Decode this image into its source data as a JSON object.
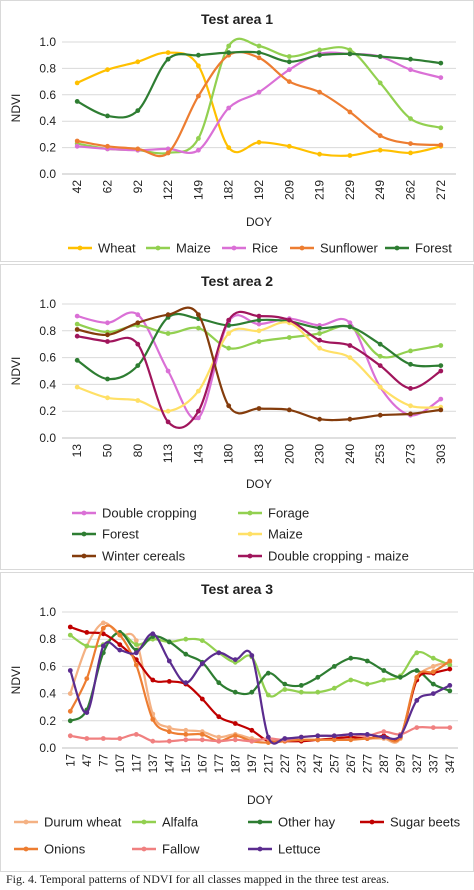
{
  "chart_data": [
    {
      "type": "line",
      "title": "Test area 1",
      "ylabel": "NDVI",
      "xlabel": "DOY",
      "ylim": [
        0,
        1
      ],
      "yticks": [
        "0.0",
        "0.2",
        "0.4",
        "0.6",
        "0.8",
        "1.0"
      ],
      "categories": [
        "42",
        "62",
        "92",
        "122",
        "149",
        "182",
        "192",
        "209",
        "219",
        "229",
        "249",
        "262",
        "272"
      ],
      "grid": true,
      "legend_position": "bottom",
      "series": [
        {
          "name": "Wheat",
          "color": "#FFC000",
          "values": [
            0.69,
            0.79,
            0.85,
            0.92,
            0.82,
            0.2,
            0.24,
            0.21,
            0.15,
            0.14,
            0.18,
            0.16,
            0.21
          ]
        },
        {
          "name": "Maize",
          "color": "#92D050",
          "values": [
            0.23,
            0.19,
            0.18,
            0.16,
            0.27,
            0.97,
            0.97,
            0.89,
            0.94,
            0.94,
            0.69,
            0.42,
            0.35
          ]
        },
        {
          "name": "Rice",
          "color": "#DA70D6",
          "values": [
            0.21,
            0.19,
            0.18,
            0.19,
            0.18,
            0.5,
            0.62,
            0.79,
            0.91,
            0.91,
            0.89,
            0.79,
            0.73
          ]
        },
        {
          "name": "Sunflower",
          "color": "#ED7D31",
          "values": [
            0.25,
            0.21,
            0.19,
            0.16,
            0.59,
            0.9,
            0.88,
            0.7,
            0.62,
            0.47,
            0.29,
            0.23,
            0.22
          ]
        },
        {
          "name": "Forest",
          "color": "#2E7D32",
          "values": [
            0.55,
            0.44,
            0.48,
            0.87,
            0.9,
            0.92,
            0.92,
            0.85,
            0.9,
            0.91,
            0.89,
            0.87,
            0.84
          ]
        }
      ]
    },
    {
      "type": "line",
      "title": "Test area 2",
      "ylabel": "NDVI",
      "xlabel": "DOY",
      "ylim": [
        0,
        1
      ],
      "yticks": [
        "0.0",
        "0.2",
        "0.4",
        "0.6",
        "0.8",
        "1.0"
      ],
      "categories": [
        "13",
        "50",
        "80",
        "113",
        "143",
        "180",
        "183",
        "200",
        "230",
        "240",
        "253",
        "273",
        "303"
      ],
      "grid": true,
      "legend_position": "bottom",
      "series": [
        {
          "name": "Double cropping",
          "color": "#DA70D6",
          "values": [
            0.91,
            0.86,
            0.92,
            0.5,
            0.15,
            0.87,
            0.85,
            0.89,
            0.84,
            0.86,
            0.38,
            0.17,
            0.29
          ]
        },
        {
          "name": "Forage",
          "color": "#92D050",
          "values": [
            0.85,
            0.79,
            0.84,
            0.78,
            0.82,
            0.67,
            0.72,
            0.75,
            0.78,
            0.83,
            0.61,
            0.65,
            0.69
          ]
        },
        {
          "name": "Forest",
          "color": "#2E7D32",
          "values": [
            0.58,
            0.44,
            0.54,
            0.9,
            0.89,
            0.84,
            0.88,
            0.87,
            0.82,
            0.83,
            0.7,
            0.55,
            0.54
          ]
        },
        {
          "name": "Maize",
          "color": "#FFE066",
          "values": [
            0.38,
            0.3,
            0.28,
            0.2,
            0.35,
            0.78,
            0.8,
            0.86,
            0.67,
            0.6,
            0.38,
            0.24,
            0.23
          ]
        },
        {
          "name": "Winter cereals",
          "color": "#843C0C",
          "values": [
            0.81,
            0.77,
            0.86,
            0.92,
            0.92,
            0.24,
            0.22,
            0.21,
            0.14,
            0.14,
            0.17,
            0.18,
            0.21
          ]
        },
        {
          "name": "Double cropping - maize",
          "color": "#A0155C",
          "values": [
            0.76,
            0.72,
            0.7,
            0.12,
            0.2,
            0.88,
            0.91,
            0.88,
            0.73,
            0.69,
            0.54,
            0.37,
            0.5
          ]
        }
      ]
    },
    {
      "type": "line",
      "title": "Test area 3",
      "ylabel": "NDVI",
      "xlabel": "DOY",
      "ylim": [
        0,
        1
      ],
      "yticks": [
        "0.0",
        "0.2",
        "0.4",
        "0.6",
        "0.8",
        "1.0"
      ],
      "categories": [
        "17",
        "47",
        "77",
        "107",
        "117",
        "137",
        "147",
        "157",
        "167",
        "177",
        "187",
        "197",
        "217",
        "227",
        "237",
        "247",
        "257",
        "267",
        "277",
        "287",
        "297",
        "327",
        "337",
        "347"
      ],
      "grid": true,
      "legend_position": "bottom",
      "series": [
        {
          "name": "Durum wheat",
          "color": "#F4B183",
          "values": [
            0.4,
            0.75,
            0.92,
            0.83,
            0.79,
            0.25,
            0.15,
            0.13,
            0.12,
            0.08,
            0.1,
            0.07,
            0.06,
            0.06,
            0.06,
            0.06,
            0.07,
            0.08,
            0.07,
            0.07,
            0.07,
            0.5,
            0.6,
            0.63
          ]
        },
        {
          "name": "Alfalfa",
          "color": "#92D050",
          "values": [
            0.83,
            0.75,
            0.76,
            0.85,
            0.76,
            0.8,
            0.78,
            0.8,
            0.79,
            0.7,
            0.63,
            0.67,
            0.39,
            0.43,
            0.41,
            0.41,
            0.44,
            0.5,
            0.47,
            0.5,
            0.53,
            0.7,
            0.66,
            0.61
          ]
        },
        {
          "name": "Other hay",
          "color": "#2E7D32",
          "values": [
            0.2,
            0.28,
            0.7,
            0.85,
            0.72,
            0.82,
            0.78,
            0.69,
            0.63,
            0.48,
            0.41,
            0.41,
            0.55,
            0.47,
            0.46,
            0.52,
            0.6,
            0.66,
            0.64,
            0.57,
            0.52,
            0.57,
            0.47,
            0.42
          ]
        },
        {
          "name": "Sugar beets",
          "color": "#C00000",
          "values": [
            0.89,
            0.85,
            0.84,
            0.76,
            0.65,
            0.5,
            0.49,
            0.47,
            0.36,
            0.23,
            0.18,
            0.13,
            0.05,
            0.05,
            0.05,
            0.06,
            0.07,
            0.08,
            0.07,
            0.09,
            0.08,
            0.5,
            0.55,
            0.58
          ]
        },
        {
          "name": "Onions",
          "color": "#ED7D31",
          "values": [
            0.27,
            0.51,
            0.88,
            0.83,
            0.61,
            0.21,
            0.12,
            0.1,
            0.1,
            0.05,
            0.09,
            0.05,
            0.04,
            0.05,
            0.06,
            0.06,
            0.06,
            0.06,
            0.07,
            0.08,
            0.08,
            0.52,
            0.56,
            0.64
          ]
        },
        {
          "name": "Fallow",
          "color": "#F08080",
          "values": [
            0.09,
            0.07,
            0.07,
            0.07,
            0.1,
            0.05,
            0.05,
            0.06,
            0.06,
            0.05,
            0.06,
            0.05,
            0.07,
            0.06,
            0.08,
            0.09,
            0.09,
            0.1,
            0.09,
            0.12,
            0.1,
            0.15,
            0.15,
            0.15
          ]
        },
        {
          "name": "Lettuce",
          "color": "#5B2C8F",
          "values": [
            0.57,
            0.26,
            0.75,
            0.72,
            0.7,
            0.84,
            0.64,
            0.48,
            0.62,
            0.7,
            0.65,
            0.68,
            0.08,
            0.07,
            0.08,
            0.09,
            0.09,
            0.1,
            0.1,
            0.08,
            0.09,
            0.35,
            0.4,
            0.46
          ]
        }
      ]
    }
  ],
  "caption": "Fig. 4. Temporal patterns of NDVI for all classes mapped in the three test areas."
}
